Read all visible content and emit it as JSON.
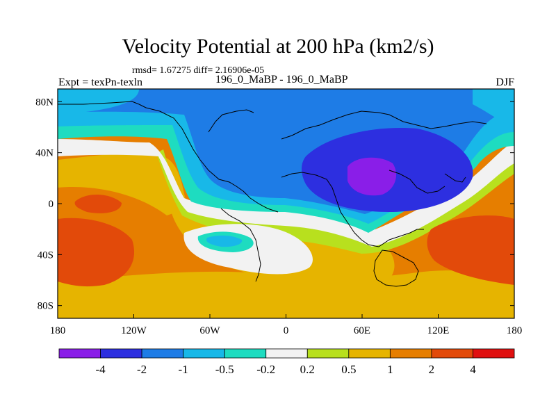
{
  "chart_data": {
    "type": "contour-map",
    "title": "Velocity Potential at 200 hPa (km2/s)",
    "stats": "rmsd= 1.67275 diff= 2.16906e-05",
    "left_label": "Expt = texPn-texln",
    "center_label": "196_0_MaBP - 196_0_MaBP",
    "right_label": "DJF",
    "x_ticks": [
      "180",
      "120W",
      "60W",
      "0",
      "60E",
      "120E",
      "180"
    ],
    "y_ticks": [
      "80N",
      "40N",
      "0",
      "40S",
      "80S"
    ],
    "xlim": [
      -180,
      180
    ],
    "ylim": [
      -90,
      90
    ],
    "colorbar": {
      "labels": [
        "-4",
        "-2",
        "-1",
        "-0.5",
        "-0.2",
        "0.2",
        "0.5",
        "1",
        "2",
        "4"
      ],
      "levels": [
        -4,
        -2,
        -1,
        -0.5,
        -0.2,
        0.2,
        0.5,
        1,
        2,
        4
      ],
      "colors": [
        "#8a1ee8",
        "#2d2fe0",
        "#1e7ce6",
        "#18b8e8",
        "#1edcc0",
        "#f2f2f2",
        "#b8e01e",
        "#e6b400",
        "#e67e00",
        "#e24a0a",
        "#e01010"
      ]
    },
    "extrema": {
      "minimum": {
        "lon": 60,
        "lat": 25,
        "value_band": "< -4"
      },
      "maximum_west": {
        "lon": -160,
        "lat": -40,
        "value_band": "2 to 4"
      },
      "maximum_east": {
        "lon": 150,
        "lat": -30,
        "value_band": "2 to 4"
      }
    }
  }
}
